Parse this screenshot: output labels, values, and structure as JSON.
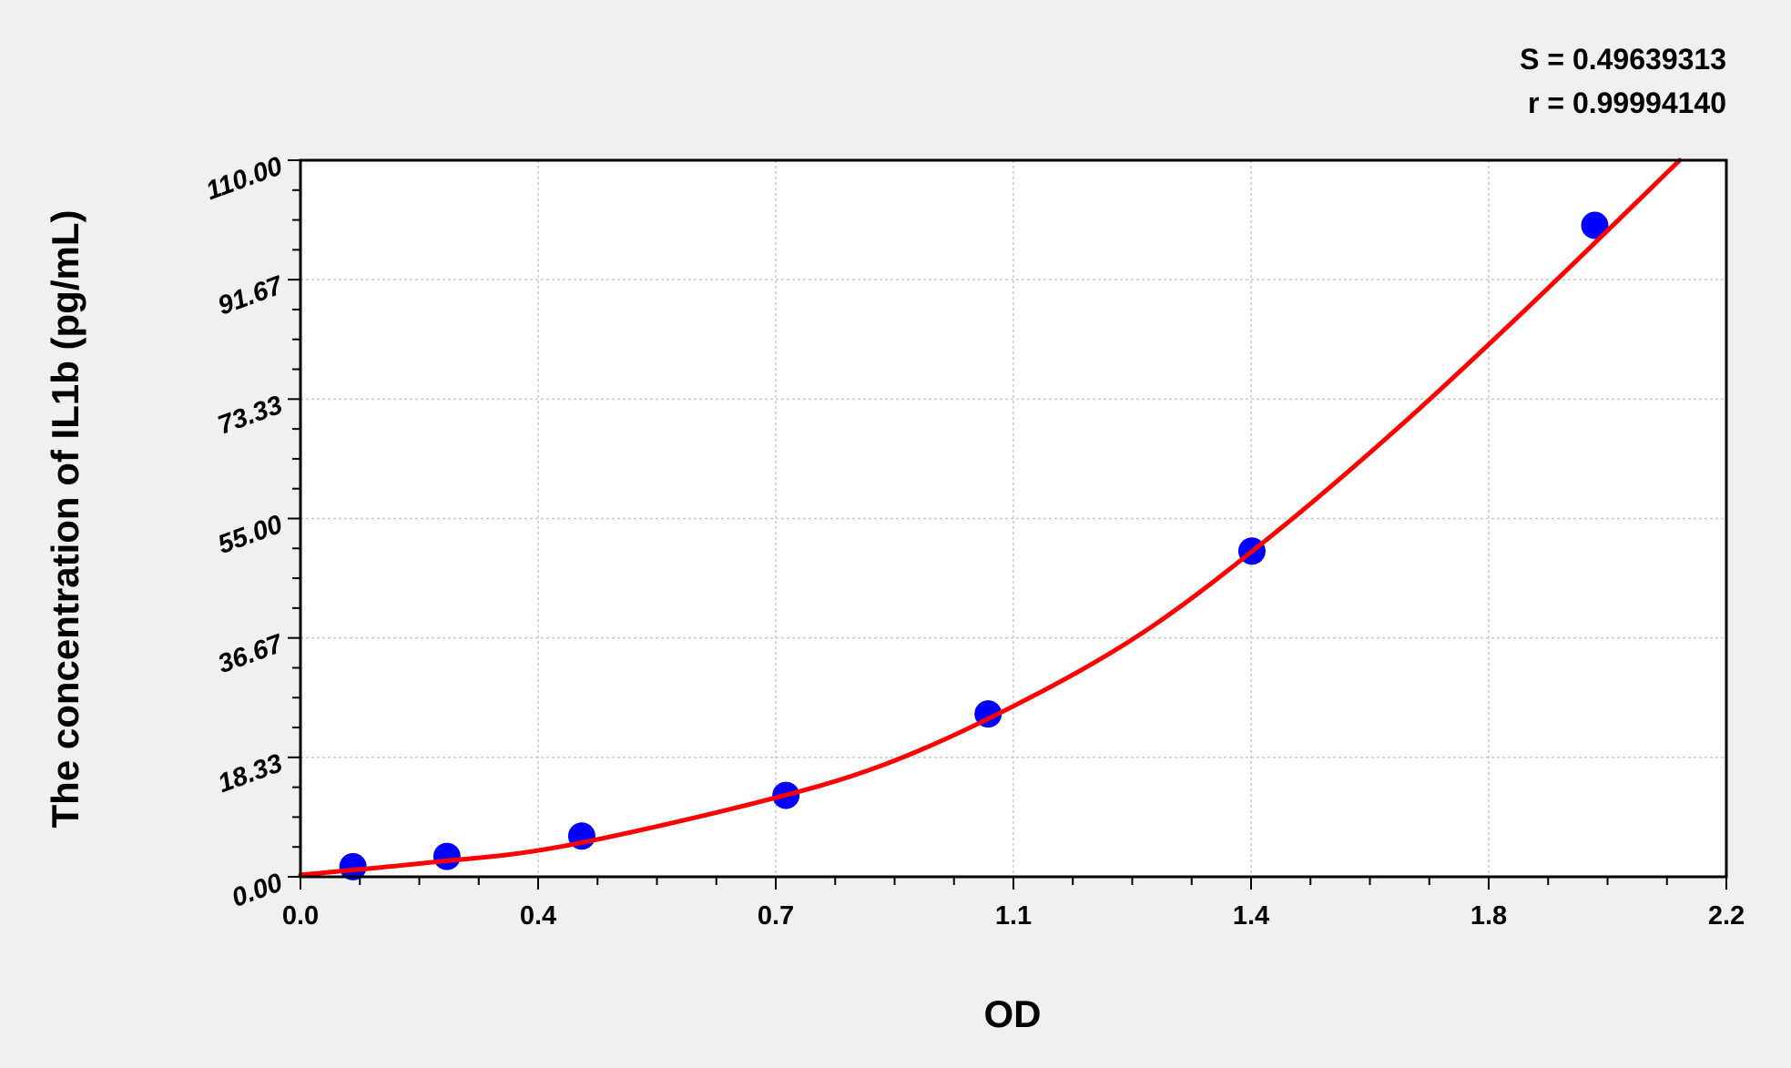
{
  "chart_data": {
    "type": "scatter",
    "title": "",
    "xlabel": "OD",
    "ylabel": "The concentration of IL1b (pg/mL)",
    "xlim": [
      0,
      2.2
    ],
    "ylim": [
      0,
      110
    ],
    "x_tick_labels": [
      "0.0",
      "0.4",
      "0.7",
      "1.1",
      "1.4",
      "1.8",
      "2.2"
    ],
    "y_tick_labels": [
      "0.00",
      "18.33",
      "36.67",
      "55.00",
      "73.33",
      "91.67",
      "110.00"
    ],
    "grid": true,
    "annotations": [
      "S = 0.49639313",
      "r = 0.99994140"
    ],
    "points": [
      {
        "x": 0.081,
        "y": 1.56
      },
      {
        "x": 0.226,
        "y": 3.13
      },
      {
        "x": 0.434,
        "y": 6.25
      },
      {
        "x": 0.749,
        "y": 12.5
      },
      {
        "x": 1.061,
        "y": 25
      },
      {
        "x": 1.468,
        "y": 50
      },
      {
        "x": 1.997,
        "y": 100
      }
    ],
    "fit_curve": [
      {
        "x": 0.0,
        "y": 0.3
      },
      {
        "x": 0.2,
        "y": 2.2
      },
      {
        "x": 0.4,
        "y": 4.6
      },
      {
        "x": 0.7,
        "y": 11.3
      },
      {
        "x": 0.9,
        "y": 17.2
      },
      {
        "x": 1.1,
        "y": 26.2
      },
      {
        "x": 1.3,
        "y": 37.5
      },
      {
        "x": 1.5,
        "y": 52.5
      },
      {
        "x": 1.7,
        "y": 69.5
      },
      {
        "x": 1.9,
        "y": 88
      },
      {
        "x": 2.128,
        "y": 110
      }
    ],
    "colors": {
      "points": "#0000ff",
      "curve": "#ff0000",
      "grid": "#c8c8c8",
      "background": "#f0f0f0",
      "plot_background": "#ffffff"
    }
  }
}
